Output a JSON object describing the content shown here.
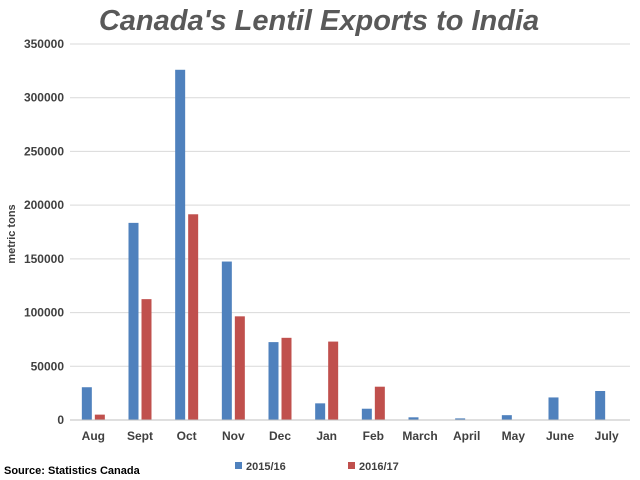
{
  "chart_data": {
    "type": "bar",
    "title": "Canada's Lentil Exports to India",
    "ylabel": "metric tons",
    "xlabel": "",
    "ylim": [
      0,
      350000
    ],
    "yticks": [
      0,
      50000,
      100000,
      150000,
      200000,
      250000,
      300000,
      350000
    ],
    "ytick_labels": [
      "0",
      "50000",
      "100000",
      "150000",
      "200000",
      "250000",
      "300000",
      "350000"
    ],
    "grid": true,
    "legend_position": "bottom",
    "categories": [
      "Aug",
      "Sept",
      "Oct",
      "Nov",
      "Dec",
      "Jan",
      "Feb",
      "March",
      "April",
      "May",
      "June",
      "July"
    ],
    "series": [
      {
        "name": "2015/16",
        "color": "#4f81bd",
        "values": [
          30500,
          183500,
          326000,
          147500,
          72500,
          15500,
          10500,
          2500,
          1500,
          4500,
          21000,
          27000
        ]
      },
      {
        "name": "2016/17",
        "color": "#c0504d",
        "values": [
          5000,
          112500,
          191500,
          96500,
          76500,
          73000,
          31000,
          null,
          null,
          null,
          null,
          null
        ]
      }
    ],
    "source": "Source: Statistics Canada"
  }
}
